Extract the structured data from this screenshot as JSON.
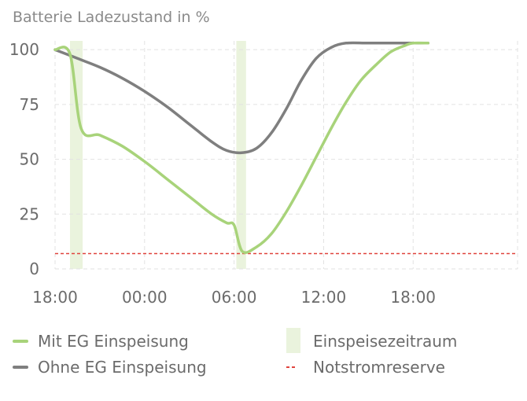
{
  "chart_data": {
    "type": "line",
    "title": "Batterie Ladezustand in %",
    "ylim": [
      0,
      104
    ],
    "yticks": [
      0,
      25,
      50,
      75,
      100
    ],
    "xlim": [
      0,
      31
    ],
    "xticks": [
      {
        "value": 0,
        "label": "18:00"
      },
      {
        "value": 6,
        "label": "00:00"
      },
      {
        "value": 12,
        "label": "06:00"
      },
      {
        "value": 18,
        "label": "12:00"
      },
      {
        "value": 24,
        "label": "18:00"
      }
    ],
    "grid": true,
    "legend_position": "bottom",
    "series": [
      {
        "name": "Mit EG Einspeisung",
        "color": "#a8d37a",
        "points": [
          [
            0,
            100
          ],
          [
            1,
            98
          ],
          [
            1.75,
            64
          ],
          [
            3,
            61
          ],
          [
            4.5,
            56
          ],
          [
            6,
            49
          ],
          [
            7.5,
            41
          ],
          [
            9,
            33
          ],
          [
            10.5,
            25
          ],
          [
            11.5,
            21
          ],
          [
            12,
            20
          ],
          [
            12.55,
            8
          ],
          [
            13.5,
            10
          ],
          [
            14.5,
            16
          ],
          [
            15.5,
            26
          ],
          [
            16.5,
            38
          ],
          [
            17.5,
            51
          ],
          [
            18.5,
            64
          ],
          [
            19.5,
            76
          ],
          [
            20.5,
            86
          ],
          [
            21.5,
            93
          ],
          [
            22.5,
            99
          ],
          [
            23.5,
            102
          ],
          [
            24,
            103
          ],
          [
            25,
            103
          ]
        ]
      },
      {
        "name": "Ohne EG Einspeisung",
        "color": "#7f7f7f",
        "points": [
          [
            0,
            100
          ],
          [
            1.5,
            96
          ],
          [
            3,
            92
          ],
          [
            4.5,
            87
          ],
          [
            6,
            81
          ],
          [
            7.5,
            74
          ],
          [
            9,
            66
          ],
          [
            10.5,
            58
          ],
          [
            11.5,
            54
          ],
          [
            12.5,
            53
          ],
          [
            13.5,
            55
          ],
          [
            14.5,
            62
          ],
          [
            15.5,
            73
          ],
          [
            16.5,
            86
          ],
          [
            17.5,
            96
          ],
          [
            18.5,
            101
          ],
          [
            19.5,
            103
          ],
          [
            21,
            103
          ],
          [
            23,
            103
          ],
          [
            25,
            103
          ]
        ]
      }
    ],
    "shaded_periods": {
      "name": "Einspeisezeitraum",
      "color": "#eaf3dd",
      "ranges": [
        [
          1,
          1.85
        ],
        [
          12.15,
          12.8
        ]
      ]
    },
    "reference_line": {
      "name": "Notstromreserve",
      "value": 7,
      "color": "#e0433d",
      "style": "dashed"
    }
  }
}
